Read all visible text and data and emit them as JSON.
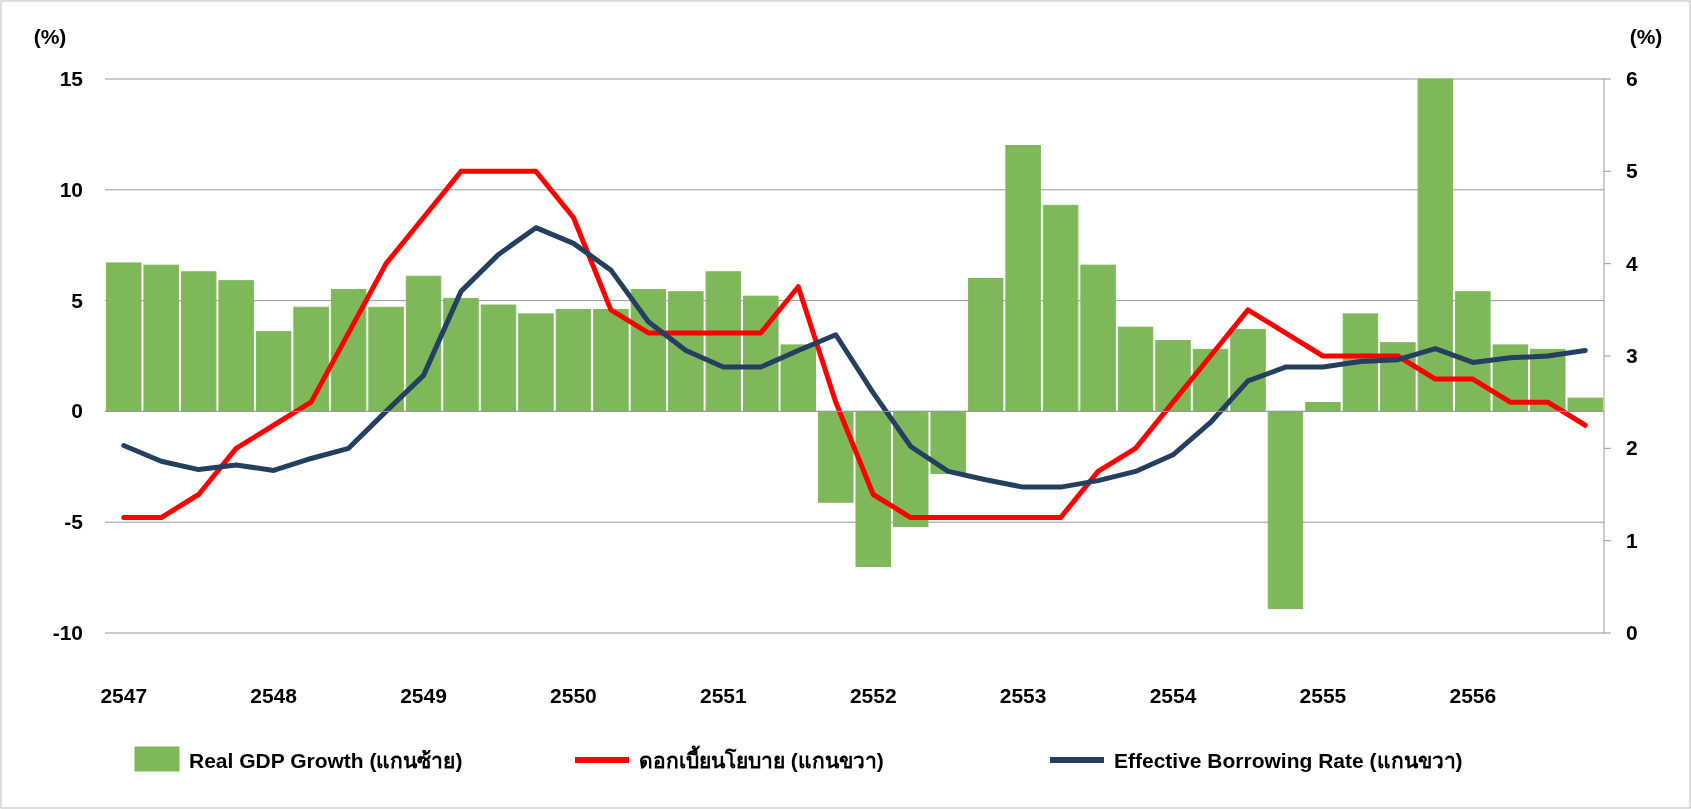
{
  "chart_data": {
    "type": "bar",
    "ylabel": "(%)",
    "y2label": "(%)",
    "categories": [
      "2547",
      null,
      null,
      null,
      "2548",
      null,
      null,
      null,
      "2549",
      null,
      null,
      null,
      "2550",
      null,
      null,
      null,
      "2551",
      null,
      null,
      null,
      "2552",
      null,
      null,
      null,
      "2553",
      null,
      null,
      null,
      "2554",
      null,
      null,
      null,
      "2555",
      null,
      null,
      null,
      "2556",
      null,
      null,
      null
    ],
    "ylim": [
      -10,
      15
    ],
    "yticks": [
      -10,
      -5,
      0,
      5,
      10,
      15
    ],
    "y2lim": [
      0,
      6
    ],
    "y2ticks": [
      0,
      1,
      2,
      3,
      4,
      5,
      6
    ],
    "grid": "y",
    "legend": "bottom",
    "series": [
      {
        "name": "Real GDP Growth (แกนซ้าย)",
        "color": "#7fb85a",
        "values": [
          6.7,
          6.6,
          6.3,
          5.9,
          3.6,
          4.7,
          5.5,
          4.7,
          6.1,
          5.1,
          4.8,
          4.4,
          4.6,
          4.6,
          5.5,
          5.4,
          6.3,
          5.2,
          3.0,
          -4.1,
          -7.0,
          -5.2,
          -2.8,
          6.0,
          12.0,
          9.3,
          6.6,
          3.8,
          3.2,
          2.8,
          3.7,
          -8.9,
          0.4,
          4.4,
          3.1,
          15.0,
          5.4,
          3.0,
          2.8,
          0.6
        ]
      },
      {
        "name": "ดอกเบี้ยนโยบาย (แกนขวา)",
        "type": "line",
        "axis": "y2",
        "color": "#ff0000",
        "values": [
          1.25,
          1.25,
          1.5,
          2.0,
          2.25,
          2.5,
          3.25,
          4.0,
          4.5,
          5.0,
          5.0,
          5.0,
          4.5,
          3.5,
          3.25,
          3.25,
          3.25,
          3.25,
          3.75,
          2.5,
          1.5,
          1.25,
          1.25,
          1.25,
          1.25,
          1.25,
          1.75,
          2.0,
          2.5,
          3.0,
          3.5,
          3.25,
          3.0,
          3.0,
          3.0,
          2.75,
          2.75,
          2.5,
          2.5,
          2.25
        ]
      },
      {
        "name": "Effective Borrowing Rate (แกนขวา)",
        "type": "line",
        "axis": "y2",
        "color": "#243f60",
        "values": [
          2.03,
          1.86,
          1.77,
          1.82,
          1.76,
          1.89,
          2.0,
          2.4,
          2.79,
          3.7,
          4.1,
          4.39,
          4.22,
          3.93,
          3.37,
          3.06,
          2.88,
          2.88,
          3.06,
          3.23,
          2.6,
          2.02,
          1.75,
          1.66,
          1.58,
          1.58,
          1.65,
          1.75,
          1.93,
          2.28,
          2.73,
          2.88,
          2.88,
          2.94,
          2.96,
          3.08,
          2.93,
          2.98,
          3.0,
          3.06
        ]
      }
    ]
  }
}
